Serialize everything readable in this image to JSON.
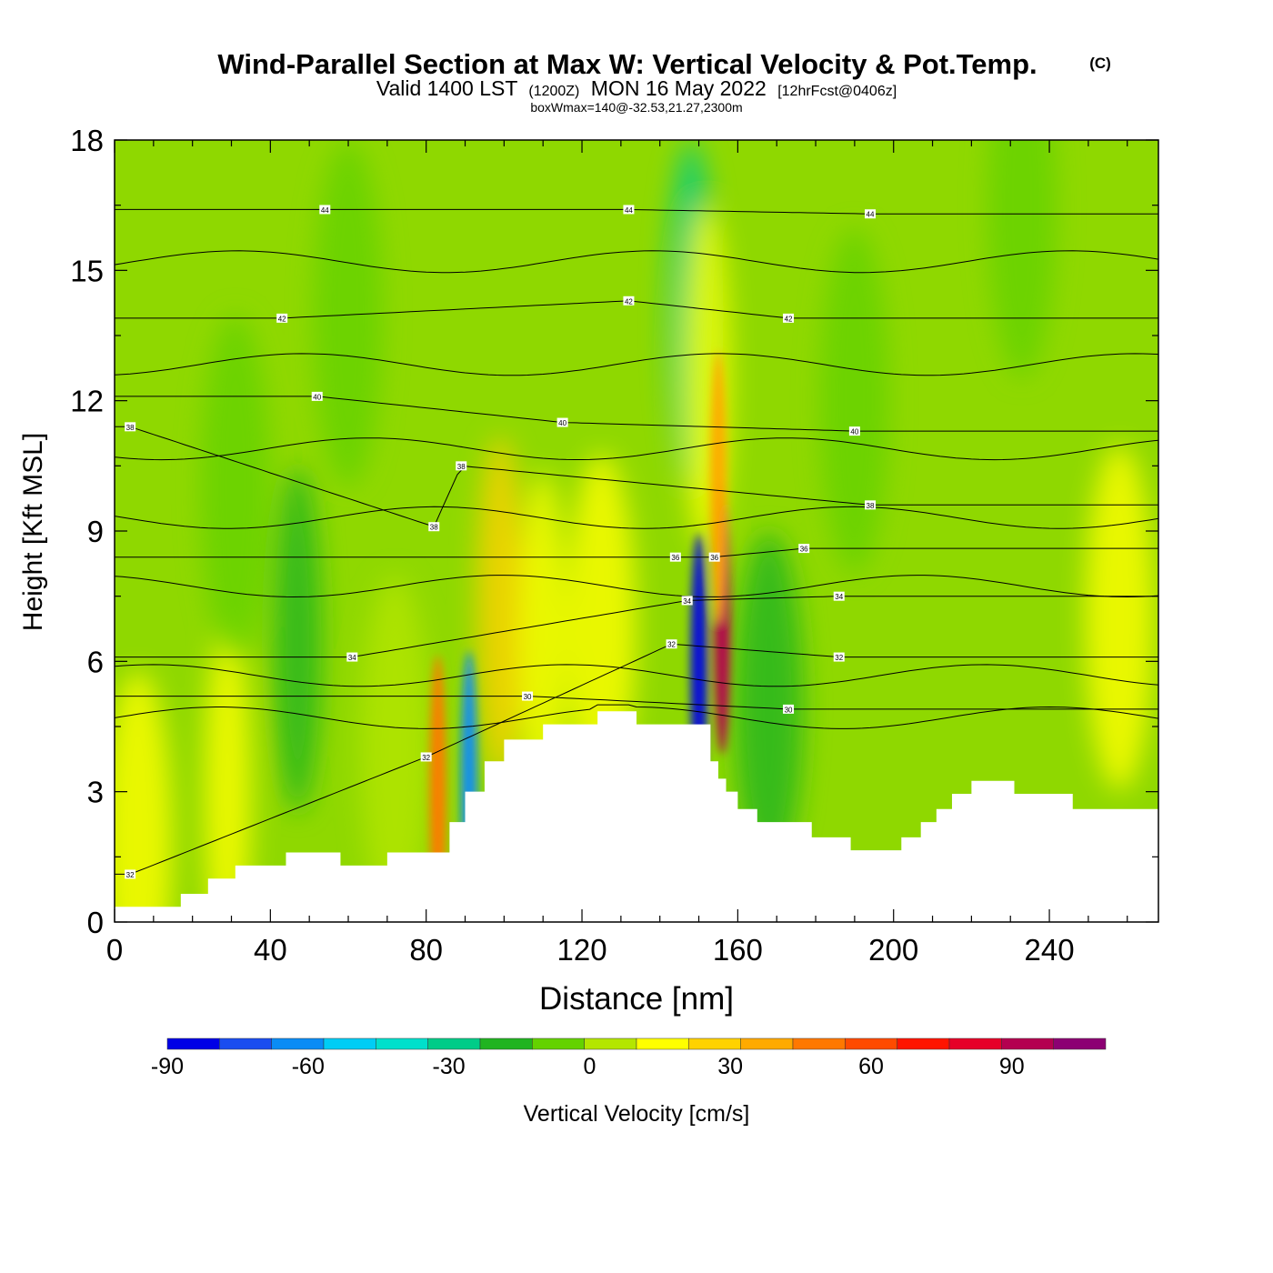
{
  "chart_data": {
    "type": "heatmap",
    "title": "Wind-Parallel Section at Max W: Vertical Velocity & Pot.Temp.",
    "title_mark": "(C)",
    "subtitle": {
      "prefix": "Valid 1400 LST",
      "utc": "(1200Z)",
      "date": "MON 16 May 2022",
      "forecast": "[12hrFcst@0406z]"
    },
    "subtitle2": "boxWmax=140@-32.53,21.27,2300m",
    "xlabel": "Distance [nm]",
    "ylabel": "Height [Kft MSL]",
    "xlim": [
      0,
      268
    ],
    "ylim": [
      0,
      18
    ],
    "xticks": [
      "0",
      "40",
      "80",
      "120",
      "160",
      "200",
      "240"
    ],
    "yticks": [
      "0",
      "3",
      "6",
      "9",
      "12",
      "15",
      "18"
    ],
    "grid": false,
    "colorbar": {
      "label": "Vertical Velocity [cm/s]",
      "ticks": [
        "-90",
        "-60",
        "-30",
        "0",
        "30",
        "60",
        "90"
      ],
      "bounds": [
        -90,
        110
      ],
      "colors": [
        "#0000e6",
        "#1a4df0",
        "#0a8cf5",
        "#00cdf5",
        "#00e0cc",
        "#00cc88",
        "#20b420",
        "#64d200",
        "#b4e600",
        "#ffff00",
        "#ffd200",
        "#ffaa00",
        "#ff7800",
        "#ff4b00",
        "#ff1400",
        "#e60028",
        "#b40050",
        "#8c0073"
      ]
    },
    "terrain_kft": [
      [
        0,
        0.35
      ],
      [
        17,
        0.35
      ],
      [
        17,
        0.65
      ],
      [
        24,
        0.65
      ],
      [
        24,
        1.0
      ],
      [
        31,
        1.0
      ],
      [
        31,
        1.3
      ],
      [
        44,
        1.3
      ],
      [
        44,
        1.6
      ],
      [
        58,
        1.6
      ],
      [
        58,
        1.3
      ],
      [
        70,
        1.3
      ],
      [
        70,
        1.6
      ],
      [
        86,
        1.6
      ],
      [
        86,
        2.3
      ],
      [
        90,
        2.3
      ],
      [
        90,
        3.0
      ],
      [
        95,
        3.0
      ],
      [
        95,
        3.7
      ],
      [
        100,
        3.7
      ],
      [
        100,
        4.2
      ],
      [
        110,
        4.2
      ],
      [
        110,
        4.55
      ],
      [
        124,
        4.55
      ],
      [
        124,
        4.85
      ],
      [
        134,
        4.85
      ],
      [
        134,
        4.55
      ],
      [
        153,
        4.55
      ],
      [
        153,
        3.7
      ],
      [
        155,
        3.7
      ],
      [
        155,
        3.3
      ],
      [
        157,
        3.3
      ],
      [
        157,
        3.0
      ],
      [
        160,
        3.0
      ],
      [
        160,
        2.6
      ],
      [
        165,
        2.6
      ],
      [
        165,
        2.3
      ],
      [
        179,
        2.3
      ],
      [
        179,
        1.95
      ],
      [
        189,
        1.95
      ],
      [
        189,
        1.65
      ],
      [
        202,
        1.65
      ],
      [
        202,
        1.95
      ],
      [
        207,
        1.95
      ],
      [
        207,
        2.3
      ],
      [
        211,
        2.3
      ],
      [
        211,
        2.6
      ],
      [
        215,
        2.6
      ],
      [
        215,
        2.95
      ],
      [
        220,
        2.95
      ],
      [
        220,
        3.25
      ],
      [
        231,
        3.25
      ],
      [
        231,
        2.95
      ],
      [
        246,
        2.95
      ],
      [
        246,
        2.6
      ],
      [
        268,
        2.6
      ]
    ],
    "wind_field_cm_s": [
      {
        "x": 6,
        "y": 1.8,
        "value": 10
      },
      {
        "x": 29,
        "y": 2.9,
        "value": 20
      },
      {
        "x": 31,
        "y": 10.0,
        "value": -10
      },
      {
        "x": 47,
        "y": 6.5,
        "value": -20
      },
      {
        "x": 60,
        "y": 14.0,
        "value": -10
      },
      {
        "x": 72,
        "y": 4.0,
        "value": 5
      },
      {
        "x": 83,
        "y": 3.0,
        "value": 50
      },
      {
        "x": 91,
        "y": 3.1,
        "value": -60
      },
      {
        "x": 99,
        "y": 7.2,
        "value": 25
      },
      {
        "x": 110,
        "y": 6.4,
        "value": 20
      },
      {
        "x": 125,
        "y": 6.8,
        "value": 10
      },
      {
        "x": 150,
        "y": 5.8,
        "value": -85
      },
      {
        "x": 148,
        "y": 14.0,
        "value": -25
      },
      {
        "x": 152,
        "y": 12.5,
        "value": 20
      },
      {
        "x": 156,
        "y": 7.0,
        "value": 95
      },
      {
        "x": 155,
        "y": 10.0,
        "value": 40
      },
      {
        "x": 168,
        "y": 5.0,
        "value": -15
      },
      {
        "x": 190,
        "y": 12.0,
        "value": -10
      },
      {
        "x": 233,
        "y": 16.5,
        "value": -10
      },
      {
        "x": 258,
        "y": 7.0,
        "value": 10
      }
    ],
    "isentrope_labels": [
      {
        "text": "44",
        "x": 54,
        "y": 16.4
      },
      {
        "text": "44",
        "x": 132,
        "y": 16.4
      },
      {
        "text": "44",
        "x": 194,
        "y": 16.3
      },
      {
        "text": "42",
        "x": 43,
        "y": 13.9
      },
      {
        "text": "42",
        "x": 132,
        "y": 14.3
      },
      {
        "text": "42",
        "x": 173,
        "y": 13.9
      },
      {
        "text": "40",
        "x": 52,
        "y": 12.1
      },
      {
        "text": "40",
        "x": 115,
        "y": 11.5
      },
      {
        "text": "40",
        "x": 190,
        "y": 11.3
      },
      {
        "text": "38",
        "x": 4,
        "y": 11.4
      },
      {
        "text": "38",
        "x": 89,
        "y": 10.5
      },
      {
        "text": "38",
        "x": 82,
        "y": 9.1
      },
      {
        "text": "38",
        "x": 194,
        "y": 9.6
      },
      {
        "text": "36",
        "x": 144,
        "y": 8.4
      },
      {
        "text": "36",
        "x": 154,
        "y": 8.4
      },
      {
        "text": "36",
        "x": 177,
        "y": 8.6
      },
      {
        "text": "34",
        "x": 147,
        "y": 7.4
      },
      {
        "text": "34",
        "x": 186,
        "y": 7.5
      },
      {
        "text": "34",
        "x": 61,
        "y": 6.1
      },
      {
        "text": "32",
        "x": 143,
        "y": 6.4
      },
      {
        "text": "32",
        "x": 186,
        "y": 6.1
      },
      {
        "text": "32",
        "x": 80,
        "y": 3.8
      },
      {
        "text": "32",
        "x": 4,
        "y": 1.1
      },
      {
        "text": "30",
        "x": 106,
        "y": 5.2
      },
      {
        "text": "30",
        "x": 173,
        "y": 4.9
      }
    ]
  }
}
